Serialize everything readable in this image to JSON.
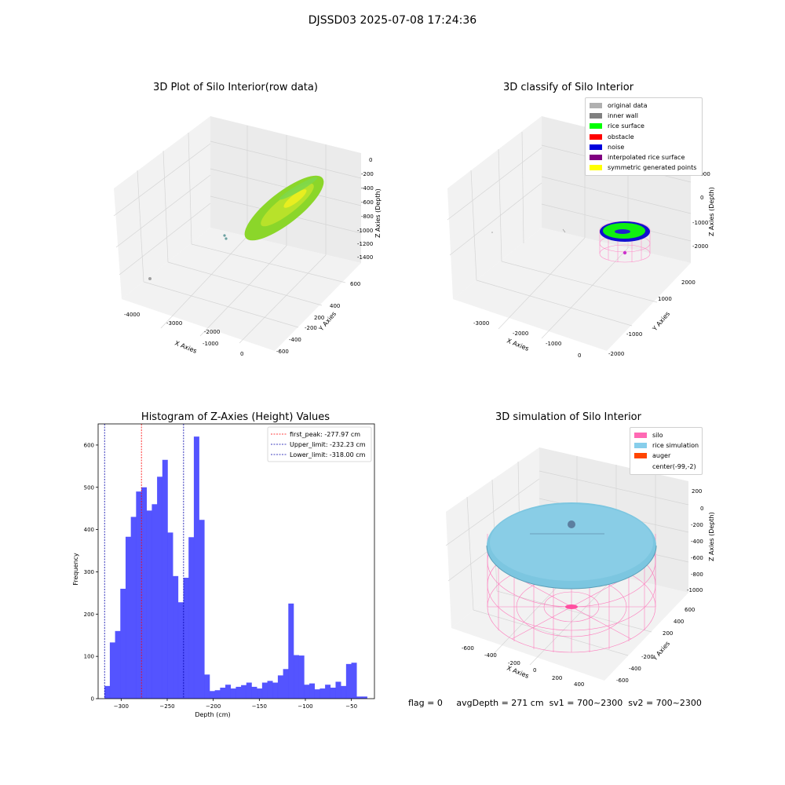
{
  "suptitle": "DJSSD03 2025-07-08 17:24:36",
  "footer": {
    "flag": "flag = 0",
    "avg": "avgDepth = 271 cm",
    "sv1": "sv1 = 700~2300",
    "sv2": "sv2 = 700~2300"
  },
  "p1": {
    "title": "3D Plot of Silo Interior(row data)",
    "xlabel": "X Axies",
    "ylabel": "Y Axies",
    "zlabel": "Z Axies (Depth)",
    "xticks": [
      "-4000",
      "-3000",
      "-2000",
      "-1000",
      "0"
    ],
    "yticks": [
      "600",
      "400",
      "200",
      "-200",
      "-400",
      "-600"
    ],
    "zticks": [
      "0",
      "-200",
      "-400",
      "-600",
      "-800",
      "-1000",
      "-1200",
      "-1400"
    ]
  },
  "p2": {
    "title": "3D classify of Silo Interior",
    "xlabel": "X Axies",
    "ylabel": "Y Axies",
    "zlabel": "Z Axies (Depth)",
    "xticks": [
      "-3000",
      "-2000",
      "-1000",
      "0"
    ],
    "yticks": [
      "2000",
      "1000",
      "-1000",
      "-2000"
    ],
    "zticks": [
      "1000",
      "0",
      "-1000",
      "-2000"
    ],
    "legend": [
      {
        "label": "original data",
        "color": "#b0b0b0"
      },
      {
        "label": "inner wall",
        "color": "#808080"
      },
      {
        "label": "rice surface",
        "color": "#00ff00"
      },
      {
        "label": "obstacle",
        "color": "#ff0000"
      },
      {
        "label": "noise",
        "color": "#0000dd"
      },
      {
        "label": "interpolated rice surface",
        "color": "#800080"
      },
      {
        "label": "symmetric generated points",
        "color": "#ffff00"
      }
    ]
  },
  "p4": {
    "title": "3D simulation of Silo Interior",
    "xlabel": "X Axies",
    "ylabel": "Y Axies",
    "zlabel": "Z Axies (Depth)",
    "xticks": [
      "-600",
      "-400",
      "-200",
      "0",
      "200",
      "400"
    ],
    "yticks": [
      "600",
      "400",
      "200",
      "-200",
      "-400",
      "-600"
    ],
    "zticks": [
      "200",
      "0",
      "-200",
      "-400",
      "-600",
      "-800",
      "-1000"
    ],
    "legend": [
      {
        "label": "silo",
        "color": "#ff69b4"
      },
      {
        "label": "rice simulation",
        "color": "#87ceeb"
      },
      {
        "label": "auger",
        "color": "#ff4500"
      },
      {
        "label": "center(-99,-2)",
        "color": "#ffffff"
      }
    ]
  },
  "chart_data": {
    "type": "bar",
    "title": "Histogram of Z-Axies (Height) Values",
    "xlabel": "Depth (cm)",
    "ylabel": "Frequency",
    "xlim": [
      -325,
      -25
    ],
    "ylim": [
      0,
      650
    ],
    "xticks": [
      -300,
      -250,
      -200,
      -150,
      -100,
      -50
    ],
    "yticks": [
      0,
      100,
      200,
      300,
      400,
      500,
      600
    ],
    "bar_color": "#4b4bff",
    "bin_edges_start": -318,
    "bin_width": 5.7,
    "values": [
      30,
      133,
      160,
      260,
      383,
      430,
      490,
      500,
      445,
      460,
      525,
      565,
      393,
      290,
      228,
      286,
      382,
      620,
      423,
      57,
      18,
      20,
      26,
      33,
      24,
      28,
      32,
      38,
      28,
      24,
      38,
      42,
      38,
      55,
      70,
      225,
      103,
      102,
      33,
      36,
      22,
      24,
      33,
      26,
      40,
      30,
      82,
      85,
      5,
      5
    ],
    "legend_position": "upper right",
    "lines": [
      {
        "label": "first_peak: -277.97 cm",
        "x": -277.97,
        "color": "#ff0000"
      },
      {
        "label": "Upper_limit: -232.23 cm",
        "x": -232.23,
        "color": "#0000aa"
      },
      {
        "label": "Lower_limit: -318.00 cm",
        "x": -318.0,
        "color": "#0000aa"
      }
    ]
  }
}
